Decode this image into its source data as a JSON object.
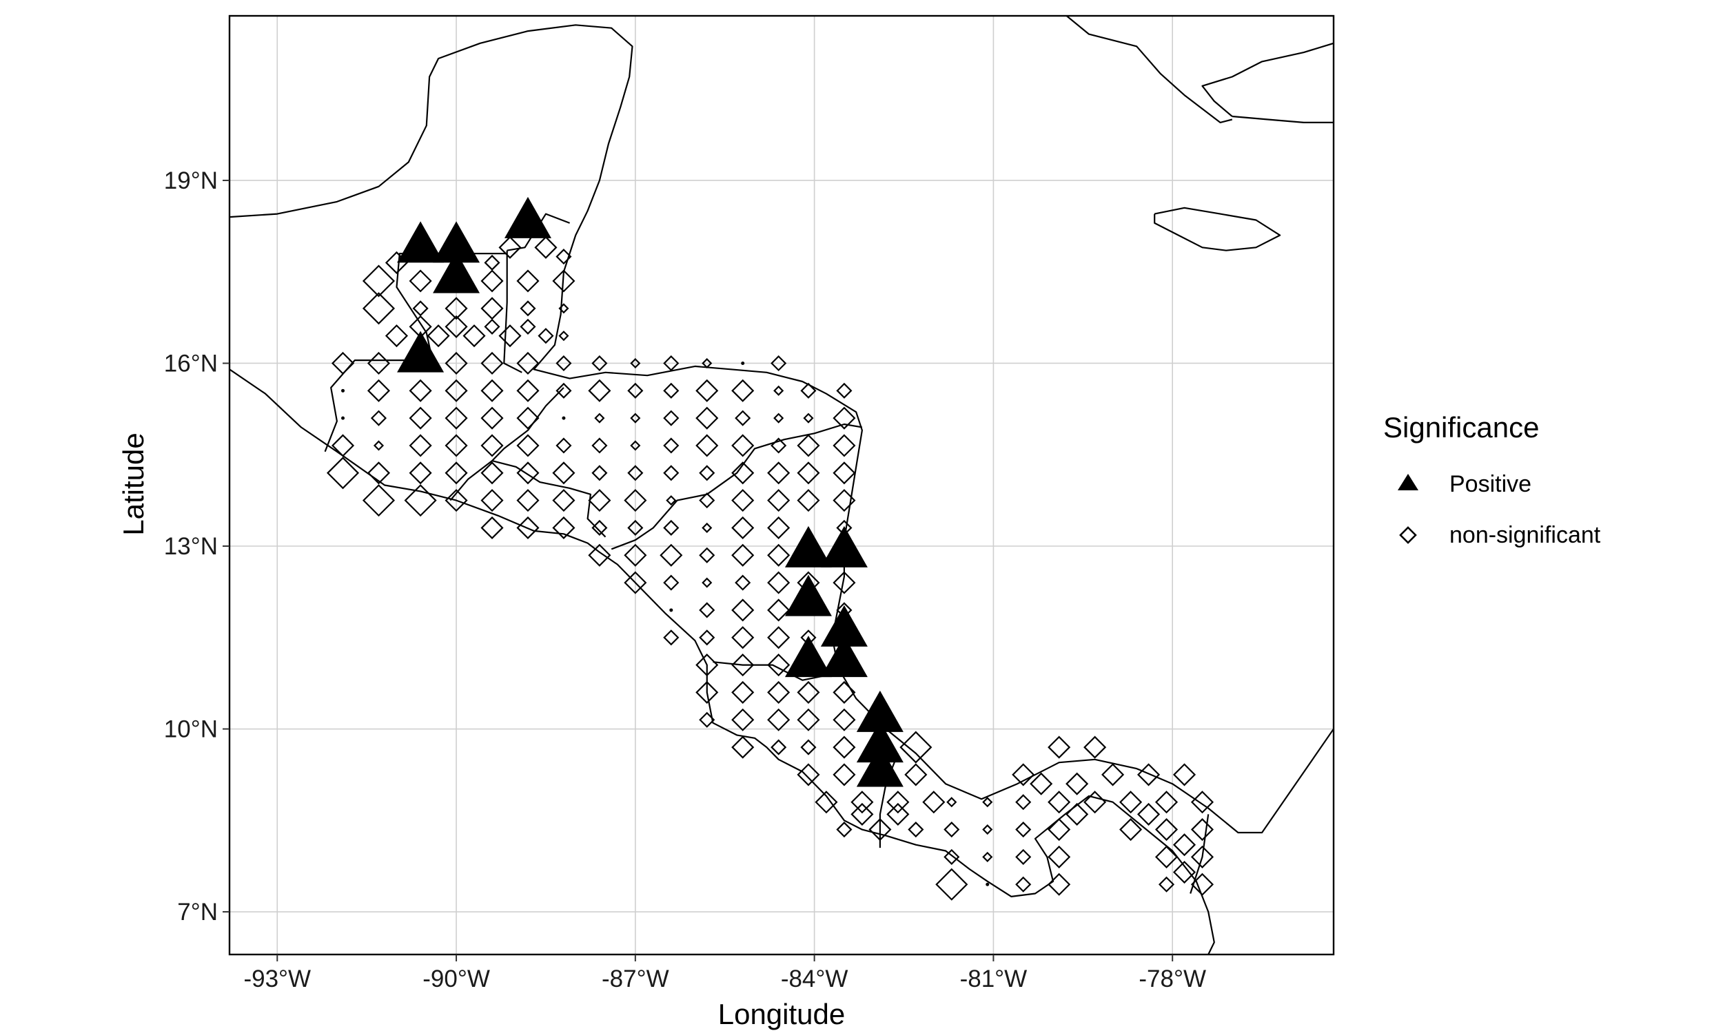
{
  "chart_data": {
    "type": "scatter",
    "xlabel": "Longitude",
    "ylabel": "Latitude",
    "xlim": [
      -93.8,
      -75.3
    ],
    "ylim": [
      6.3,
      21.7
    ],
    "x_ticks": [
      -93,
      -90,
      -87,
      -84,
      -81,
      -78
    ],
    "y_ticks": [
      7,
      10,
      13,
      16,
      19
    ],
    "x_tick_labels": [
      "-93°W",
      "-90°W",
      "-87°W",
      "-84°W",
      "-81°W",
      "-78°W"
    ],
    "y_tick_labels": [
      "7°N",
      "10°N",
      "13°N",
      "16°N",
      "19°N"
    ],
    "grid": true,
    "legend": {
      "title": "Significance",
      "position": "right",
      "entries": [
        {
          "label": "Positive",
          "shape": "filled-triangle"
        },
        {
          "label": "non-significant",
          "shape": "open-diamond"
        }
      ]
    },
    "series": [
      {
        "name": "Positive",
        "shape": "filled-triangle",
        "color": "#000000",
        "points": [
          [
            -90.6,
            17.9,
            5
          ],
          [
            -90.0,
            17.9,
            5
          ],
          [
            -90.0,
            17.4,
            5
          ],
          [
            -88.8,
            18.3,
            5
          ],
          [
            -90.6,
            16.1,
            5
          ],
          [
            -84.1,
            12.9,
            5
          ],
          [
            -83.5,
            12.9,
            5
          ],
          [
            -84.1,
            12.1,
            5
          ],
          [
            -83.5,
            11.6,
            5
          ],
          [
            -84.1,
            11.1,
            5
          ],
          [
            -83.5,
            11.1,
            5
          ],
          [
            -82.9,
            10.2,
            5
          ],
          [
            -82.9,
            9.7,
            5
          ],
          [
            -82.9,
            9.3,
            5
          ]
        ]
      },
      {
        "name": "non-significant",
        "shape": "open-diamond",
        "color": "#000000",
        "points": [
          [
            -91.3,
            17.35,
            4
          ],
          [
            -90.6,
            17.35,
            3
          ],
          [
            -90.0,
            17.35,
            3
          ],
          [
            -89.4,
            17.35,
            3
          ],
          [
            -88.8,
            17.35,
            3
          ],
          [
            -88.2,
            17.35,
            3
          ],
          [
            -91.3,
            16.9,
            4
          ],
          [
            -90.6,
            16.9,
            2
          ],
          [
            -90.0,
            16.9,
            3
          ],
          [
            -89.4,
            16.9,
            3
          ],
          [
            -88.8,
            16.9,
            2
          ],
          [
            -88.2,
            16.9,
            1
          ],
          [
            -91.0,
            17.65,
            3
          ],
          [
            -89.1,
            17.9,
            3
          ],
          [
            -88.5,
            17.9,
            3
          ],
          [
            -88.2,
            17.75,
            2
          ],
          [
            -89.4,
            17.65,
            2
          ],
          [
            -91.0,
            16.45,
            3
          ],
          [
            -90.3,
            16.45,
            3
          ],
          [
            -89.7,
            16.45,
            3
          ],
          [
            -89.1,
            16.45,
            3
          ],
          [
            -88.5,
            16.45,
            2
          ],
          [
            -90.6,
            16.6,
            3
          ],
          [
            -90.0,
            16.6,
            3
          ],
          [
            -89.4,
            16.6,
            2
          ],
          [
            -88.8,
            16.6,
            2
          ],
          [
            -88.2,
            16.45,
            1
          ],
          [
            -91.9,
            16.0,
            3
          ],
          [
            -91.3,
            16.0,
            3
          ],
          [
            -90.0,
            16.0,
            3
          ],
          [
            -89.4,
            16.0,
            3
          ],
          [
            -88.8,
            16.0,
            3
          ],
          [
            -88.2,
            16.0,
            2
          ],
          [
            -87.6,
            16.0,
            2
          ],
          [
            -87.0,
            16.0,
            1
          ],
          [
            -86.4,
            16.0,
            2
          ],
          [
            -85.8,
            16.0,
            1
          ],
          [
            -85.2,
            16.0,
            0
          ],
          [
            -84.6,
            16.0,
            2
          ],
          [
            -91.9,
            15.55,
            0
          ],
          [
            -91.3,
            15.55,
            3
          ],
          [
            -90.6,
            15.55,
            3
          ],
          [
            -90.0,
            15.55,
            3
          ],
          [
            -89.4,
            15.55,
            3
          ],
          [
            -88.8,
            15.55,
            3
          ],
          [
            -88.2,
            15.55,
            2
          ],
          [
            -87.6,
            15.55,
            3
          ],
          [
            -87.0,
            15.55,
            2
          ],
          [
            -86.4,
            15.55,
            2
          ],
          [
            -85.8,
            15.55,
            3
          ],
          [
            -85.2,
            15.55,
            3
          ],
          [
            -84.6,
            15.55,
            1
          ],
          [
            -84.1,
            15.55,
            2
          ],
          [
            -83.5,
            15.55,
            2
          ],
          [
            -91.9,
            15.1,
            0
          ],
          [
            -91.3,
            15.1,
            2
          ],
          [
            -90.6,
            15.1,
            3
          ],
          [
            -90.0,
            15.1,
            3
          ],
          [
            -89.4,
            15.1,
            3
          ],
          [
            -88.8,
            15.1,
            3
          ],
          [
            -88.2,
            15.1,
            0
          ],
          [
            -87.6,
            15.1,
            1
          ],
          [
            -87.0,
            15.1,
            1
          ],
          [
            -86.4,
            15.1,
            2
          ],
          [
            -85.8,
            15.1,
            3
          ],
          [
            -85.2,
            15.1,
            2
          ],
          [
            -84.6,
            15.1,
            1
          ],
          [
            -84.1,
            15.1,
            1
          ],
          [
            -83.5,
            15.1,
            3
          ],
          [
            -91.9,
            14.65,
            3
          ],
          [
            -91.3,
            14.65,
            1
          ],
          [
            -90.6,
            14.65,
            3
          ],
          [
            -90.0,
            14.65,
            3
          ],
          [
            -89.4,
            14.65,
            3
          ],
          [
            -88.8,
            14.65,
            3
          ],
          [
            -88.2,
            14.65,
            2
          ],
          [
            -87.6,
            14.65,
            2
          ],
          [
            -87.0,
            14.65,
            1
          ],
          [
            -86.4,
            14.65,
            2
          ],
          [
            -85.8,
            14.65,
            3
          ],
          [
            -85.2,
            14.65,
            3
          ],
          [
            -84.6,
            14.65,
            2
          ],
          [
            -84.1,
            14.65,
            3
          ],
          [
            -83.5,
            14.65,
            3
          ],
          [
            -91.9,
            14.2,
            4
          ],
          [
            -91.3,
            14.2,
            3
          ],
          [
            -90.6,
            14.2,
            3
          ],
          [
            -90.0,
            14.2,
            3
          ],
          [
            -89.4,
            14.2,
            3
          ],
          [
            -88.8,
            14.2,
            3
          ],
          [
            -88.2,
            14.2,
            3
          ],
          [
            -87.6,
            14.2,
            2
          ],
          [
            -87.0,
            14.2,
            2
          ],
          [
            -86.4,
            14.2,
            2
          ],
          [
            -85.8,
            14.2,
            2
          ],
          [
            -85.2,
            14.2,
            3
          ],
          [
            -84.6,
            14.2,
            3
          ],
          [
            -84.1,
            14.2,
            3
          ],
          [
            -83.5,
            14.2,
            3
          ],
          [
            -91.3,
            13.75,
            4
          ],
          [
            -90.6,
            13.75,
            4
          ],
          [
            -90.0,
            13.75,
            3
          ],
          [
            -89.4,
            13.75,
            3
          ],
          [
            -88.8,
            13.75,
            3
          ],
          [
            -88.2,
            13.75,
            3
          ],
          [
            -87.6,
            13.75,
            3
          ],
          [
            -87.0,
            13.75,
            3
          ],
          [
            -86.4,
            13.75,
            1
          ],
          [
            -85.8,
            13.75,
            2
          ],
          [
            -85.2,
            13.75,
            3
          ],
          [
            -84.6,
            13.75,
            3
          ],
          [
            -84.1,
            13.75,
            3
          ],
          [
            -83.5,
            13.75,
            3
          ],
          [
            -89.4,
            13.3,
            3
          ],
          [
            -88.8,
            13.3,
            3
          ],
          [
            -88.2,
            13.3,
            3
          ],
          [
            -87.6,
            13.3,
            2
          ],
          [
            -87.0,
            13.3,
            2
          ],
          [
            -86.4,
            13.3,
            2
          ],
          [
            -85.8,
            13.3,
            1
          ],
          [
            -85.2,
            13.3,
            3
          ],
          [
            -84.6,
            13.3,
            3
          ],
          [
            -83.5,
            13.3,
            2
          ],
          [
            -87.6,
            12.85,
            3
          ],
          [
            -87.0,
            12.85,
            3
          ],
          [
            -86.4,
            12.85,
            3
          ],
          [
            -85.8,
            12.85,
            2
          ],
          [
            -85.2,
            12.85,
            3
          ],
          [
            -84.6,
            12.85,
            3
          ],
          [
            -87.0,
            12.4,
            3
          ],
          [
            -86.4,
            12.4,
            2
          ],
          [
            -85.8,
            12.4,
            1
          ],
          [
            -85.2,
            12.4,
            2
          ],
          [
            -84.6,
            12.4,
            3
          ],
          [
            -84.1,
            12.4,
            3
          ],
          [
            -83.5,
            12.4,
            3
          ],
          [
            -86.4,
            11.95,
            0
          ],
          [
            -85.8,
            11.95,
            2
          ],
          [
            -85.2,
            11.95,
            3
          ],
          [
            -84.6,
            11.95,
            3
          ],
          [
            -83.5,
            11.95,
            2
          ],
          [
            -86.4,
            11.5,
            2
          ],
          [
            -85.8,
            11.5,
            2
          ],
          [
            -85.2,
            11.5,
            3
          ],
          [
            -84.6,
            11.5,
            3
          ],
          [
            -84.1,
            11.5,
            2
          ],
          [
            -85.8,
            11.05,
            3
          ],
          [
            -85.2,
            11.05,
            3
          ],
          [
            -84.6,
            11.05,
            3
          ],
          [
            -84.1,
            11.05,
            2
          ],
          [
            -83.5,
            11.05,
            3
          ],
          [
            -85.8,
            10.6,
            3
          ],
          [
            -85.2,
            10.6,
            3
          ],
          [
            -84.6,
            10.6,
            3
          ],
          [
            -84.1,
            10.6,
            3
          ],
          [
            -83.5,
            10.6,
            3
          ],
          [
            -85.8,
            10.15,
            2
          ],
          [
            -85.2,
            10.15,
            3
          ],
          [
            -84.6,
            10.15,
            3
          ],
          [
            -84.1,
            10.15,
            3
          ],
          [
            -83.5,
            10.15,
            3
          ],
          [
            -85.2,
            9.7,
            3
          ],
          [
            -84.6,
            9.7,
            2
          ],
          [
            -84.1,
            9.7,
            2
          ],
          [
            -83.5,
            9.7,
            3
          ],
          [
            -82.3,
            9.7,
            4
          ],
          [
            -84.1,
            9.25,
            3
          ],
          [
            -83.5,
            9.25,
            3
          ],
          [
            -82.3,
            9.25,
            3
          ],
          [
            -83.8,
            8.8,
            3
          ],
          [
            -83.2,
            8.8,
            3
          ],
          [
            -82.6,
            8.8,
            3
          ],
          [
            -82.0,
            8.8,
            3
          ],
          [
            -83.5,
            8.35,
            2
          ],
          [
            -82.9,
            8.35,
            3
          ],
          [
            -82.3,
            8.35,
            2
          ],
          [
            -83.2,
            8.6,
            3
          ],
          [
            -82.6,
            8.6,
            3
          ],
          [
            -81.7,
            8.8,
            1
          ],
          [
            -81.1,
            8.8,
            1
          ],
          [
            -81.7,
            8.35,
            2
          ],
          [
            -81.1,
            8.35,
            1
          ],
          [
            -81.7,
            7.9,
            2
          ],
          [
            -81.1,
            7.9,
            1
          ],
          [
            -81.7,
            7.45,
            4
          ],
          [
            -81.1,
            7.45,
            0
          ],
          [
            -80.5,
            9.25,
            3
          ],
          [
            -79.9,
            9.7,
            3
          ],
          [
            -79.3,
            9.7,
            3
          ],
          [
            -79.0,
            9.25,
            3
          ],
          [
            -78.4,
            9.25,
            3
          ],
          [
            -77.8,
            9.25,
            3
          ],
          [
            -80.5,
            8.8,
            2
          ],
          [
            -79.9,
            8.8,
            3
          ],
          [
            -79.3,
            8.8,
            3
          ],
          [
            -78.7,
            8.8,
            3
          ],
          [
            -78.1,
            8.8,
            3
          ],
          [
            -77.5,
            8.8,
            3
          ],
          [
            -80.5,
            8.35,
            2
          ],
          [
            -79.9,
            8.35,
            3
          ],
          [
            -78.7,
            8.35,
            3
          ],
          [
            -78.1,
            8.35,
            3
          ],
          [
            -77.5,
            8.35,
            3
          ],
          [
            -80.5,
            7.9,
            2
          ],
          [
            -79.9,
            7.9,
            3
          ],
          [
            -78.1,
            7.9,
            3
          ],
          [
            -77.5,
            7.9,
            3
          ],
          [
            -80.5,
            7.45,
            2
          ],
          [
            -79.9,
            7.45,
            3
          ],
          [
            -78.1,
            7.45,
            2
          ],
          [
            -77.5,
            7.45,
            3
          ],
          [
            -80.2,
            9.1,
            3
          ],
          [
            -79.6,
            9.1,
            3
          ],
          [
            -79.6,
            8.6,
            3
          ],
          [
            -78.4,
            8.6,
            3
          ],
          [
            -77.8,
            8.1,
            3
          ],
          [
            -77.8,
            7.65,
            3
          ]
        ]
      }
    ]
  }
}
